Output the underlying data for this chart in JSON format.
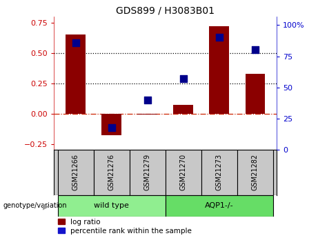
{
  "title": "GDS899 / H3083B01",
  "samples": [
    "GSM21266",
    "GSM21276",
    "GSM21279",
    "GSM21270",
    "GSM21273",
    "GSM21282"
  ],
  "log_ratio": [
    0.65,
    -0.18,
    -0.01,
    0.07,
    0.72,
    0.33
  ],
  "percentile": [
    86,
    18,
    40,
    57,
    90,
    80
  ],
  "groups": [
    {
      "name": "wild type",
      "indices": [
        0,
        1,
        2
      ],
      "color": "#90ee90"
    },
    {
      "name": "AQP1-/-",
      "indices": [
        3,
        4,
        5
      ],
      "color": "#7CFC00"
    }
  ],
  "bar_color": "#8B0000",
  "dot_color": "#00008B",
  "ylim_left": [
    -0.3,
    0.8
  ],
  "ylim_right": [
    0,
    106.67
  ],
  "yticks_left": [
    -0.25,
    0,
    0.25,
    0.5,
    0.75
  ],
  "yticks_right": [
    0,
    25,
    50,
    75,
    100
  ],
  "ytick_labels_right": [
    "0",
    "25",
    "50",
    "75",
    "100%"
  ],
  "hlines": [
    0.5,
    0.25
  ],
  "bar_width": 0.55,
  "genotype_label": "genotype/variation",
  "legend_items": [
    {
      "label": "log ratio",
      "color": "#8B0000"
    },
    {
      "label": "percentile rank within the sample",
      "color": "#1414CC"
    }
  ],
  "label_color_left": "#CC0000",
  "label_color_right": "#0000CC",
  "zero_line_color": "#CC2200",
  "dot_size": 55,
  "background_color": "#ffffff",
  "cell_bg": "#c8c8c8",
  "group_color_wt": "#90ee90",
  "group_color_aqp": "#66dd66"
}
